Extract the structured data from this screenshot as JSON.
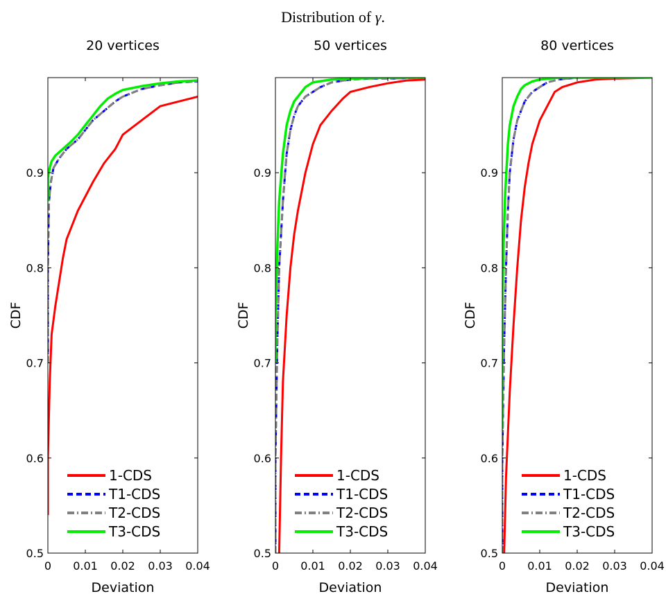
{
  "figure": {
    "title_prefix": "Distribution of ",
    "title_symbol": "γ",
    "title_suffix": "."
  },
  "colors": {
    "1-CDS": "#ff0000",
    "T1-CDS": "#0000ff",
    "T2-CDS": "#808080",
    "T3-CDS": "#00ee00"
  },
  "chart_data": [
    {
      "type": "line",
      "title": "20 vertices",
      "xlabel": "Deviation",
      "ylabel": "CDF",
      "xlim": [
        0,
        0.04
      ],
      "ylim": [
        0.5,
        1.0
      ],
      "xticks": [
        "0",
        "0.01",
        "0.02",
        "0.03",
        "0.04"
      ],
      "yticks": [
        "0.5",
        "0.6",
        "0.7",
        "0.8",
        "0.9"
      ],
      "legend_position": "bottom",
      "series": [
        {
          "name": "1-CDS",
          "x": [
            0,
            0,
            0.0005,
            0.001,
            0.002,
            0.003,
            0.004,
            0.005,
            0.0065,
            0.008,
            0.01,
            0.012,
            0.015,
            0.018,
            0.02,
            0.025,
            0.03,
            0.035,
            0.04
          ],
          "y": [
            0.54,
            0.6,
            0.68,
            0.73,
            0.76,
            0.785,
            0.81,
            0.83,
            0.845,
            0.86,
            0.875,
            0.89,
            0.91,
            0.925,
            0.94,
            0.955,
            0.97,
            0.975,
            0.98
          ]
        },
        {
          "name": "T1-CDS",
          "x": [
            0,
            0,
            0.0003,
            0.0008,
            0.0015,
            0.003,
            0.005,
            0.008,
            0.01,
            0.012,
            0.015,
            0.018,
            0.02,
            0.025,
            0.03,
            0.035,
            0.04
          ],
          "y": [
            0.7,
            0.8,
            0.87,
            0.89,
            0.905,
            0.915,
            0.925,
            0.935,
            0.945,
            0.955,
            0.965,
            0.975,
            0.98,
            0.988,
            0.992,
            0.995,
            0.996
          ]
        },
        {
          "name": "T2-CDS",
          "x": [
            0,
            0,
            0.0003,
            0.0008,
            0.0015,
            0.003,
            0.005,
            0.008,
            0.01,
            0.012,
            0.015,
            0.018,
            0.02,
            0.025,
            0.03,
            0.035,
            0.04
          ],
          "y": [
            0.7,
            0.8,
            0.87,
            0.89,
            0.905,
            0.915,
            0.925,
            0.935,
            0.945,
            0.955,
            0.965,
            0.975,
            0.98,
            0.988,
            0.992,
            0.995,
            0.996
          ]
        },
        {
          "name": "T3-CDS",
          "x": [
            0,
            0,
            0.0005,
            0.001,
            0.002,
            0.004,
            0.006,
            0.008,
            0.01,
            0.012,
            0.014,
            0.016,
            0.018,
            0.02,
            0.025,
            0.03,
            0.035,
            0.04
          ],
          "y": [
            0.87,
            0.895,
            0.905,
            0.912,
            0.918,
            0.925,
            0.932,
            0.94,
            0.95,
            0.96,
            0.97,
            0.978,
            0.983,
            0.987,
            0.991,
            0.994,
            0.996,
            0.997
          ]
        }
      ]
    },
    {
      "type": "line",
      "title": "50 vertices",
      "xlabel": "Deviation",
      "ylabel": "CDF",
      "xlim": [
        0,
        0.04
      ],
      "ylim": [
        0.5,
        1.0
      ],
      "xticks": [
        "0",
        "0.01",
        "0.02",
        "0.03",
        "0.04"
      ],
      "yticks": [
        "0.5",
        "0.6",
        "0.7",
        "0.8",
        "0.9"
      ],
      "legend_position": "bottom",
      "series": [
        {
          "name": "1-CDS",
          "x": [
            0.001,
            0.0015,
            0.002,
            0.003,
            0.004,
            0.005,
            0.006,
            0.008,
            0.01,
            0.012,
            0.015,
            0.018,
            0.02,
            0.025,
            0.03,
            0.035,
            0.04
          ],
          "y": [
            0.5,
            0.6,
            0.68,
            0.75,
            0.8,
            0.835,
            0.86,
            0.9,
            0.93,
            0.95,
            0.965,
            0.978,
            0.985,
            0.99,
            0.994,
            0.997,
            0.998
          ]
        },
        {
          "name": "T1-CDS",
          "x": [
            0,
            0,
            0.0005,
            0.001,
            0.002,
            0.003,
            0.004,
            0.005,
            0.006,
            0.008,
            0.01,
            0.012,
            0.015,
            0.02,
            0.025,
            0.03,
            0.04
          ],
          "y": [
            0.5,
            0.6,
            0.72,
            0.8,
            0.87,
            0.92,
            0.945,
            0.96,
            0.97,
            0.98,
            0.985,
            0.99,
            0.995,
            0.998,
            0.999,
            0.999,
            1.0
          ]
        },
        {
          "name": "T2-CDS",
          "x": [
            0,
            0,
            0.0005,
            0.001,
            0.002,
            0.003,
            0.004,
            0.005,
            0.006,
            0.008,
            0.01,
            0.012,
            0.015,
            0.02,
            0.025,
            0.03,
            0.04
          ],
          "y": [
            0.5,
            0.6,
            0.72,
            0.8,
            0.87,
            0.92,
            0.945,
            0.96,
            0.97,
            0.98,
            0.985,
            0.99,
            0.995,
            0.998,
            0.999,
            0.999,
            1.0
          ]
        },
        {
          "name": "T3-CDS",
          "x": [
            0,
            0,
            0.0005,
            0.001,
            0.002,
            0.003,
            0.004,
            0.005,
            0.007,
            0.008,
            0.01,
            0.015,
            0.02,
            0.03,
            0.04
          ],
          "y": [
            0.7,
            0.75,
            0.82,
            0.87,
            0.92,
            0.95,
            0.965,
            0.975,
            0.985,
            0.99,
            0.995,
            0.998,
            0.999,
            1.0,
            1.0
          ]
        }
      ]
    },
    {
      "type": "line",
      "title": "80 vertices",
      "xlabel": "Deviation",
      "ylabel": "CDF",
      "xlim": [
        0,
        0.04
      ],
      "ylim": [
        0.5,
        1.0
      ],
      "xticks": [
        "0",
        "0.01",
        "0.02",
        "0.03",
        "0.04"
      ],
      "yticks": [
        "0.5",
        "0.6",
        "0.7",
        "0.8",
        "0.9"
      ],
      "legend_position": "bottom",
      "series": [
        {
          "name": "1-CDS",
          "x": [
            0.0005,
            0.001,
            0.002,
            0.003,
            0.004,
            0.005,
            0.006,
            0.007,
            0.008,
            0.01,
            0.012,
            0.014,
            0.016,
            0.02,
            0.025,
            0.03,
            0.04
          ],
          "y": [
            0.5,
            0.58,
            0.67,
            0.74,
            0.8,
            0.85,
            0.885,
            0.91,
            0.93,
            0.955,
            0.97,
            0.985,
            0.99,
            0.995,
            0.998,
            0.999,
            1.0
          ]
        },
        {
          "name": "T1-CDS",
          "x": [
            0,
            0,
            0.0005,
            0.001,
            0.0015,
            0.002,
            0.003,
            0.004,
            0.005,
            0.006,
            0.008,
            0.01,
            0.012,
            0.015,
            0.02,
            0.03,
            0.04
          ],
          "y": [
            0.5,
            0.6,
            0.72,
            0.8,
            0.86,
            0.9,
            0.935,
            0.955,
            0.965,
            0.975,
            0.985,
            0.99,
            0.995,
            0.998,
            1.0,
            1.0,
            1.0
          ]
        },
        {
          "name": "T2-CDS",
          "x": [
            0,
            0,
            0.0005,
            0.001,
            0.0015,
            0.002,
            0.003,
            0.004,
            0.005,
            0.006,
            0.008,
            0.01,
            0.012,
            0.015,
            0.02,
            0.03,
            0.04
          ],
          "y": [
            0.5,
            0.6,
            0.72,
            0.8,
            0.86,
            0.9,
            0.935,
            0.955,
            0.965,
            0.975,
            0.985,
            0.99,
            0.995,
            0.998,
            1.0,
            1.0,
            1.0
          ]
        },
        {
          "name": "T3-CDS",
          "x": [
            0,
            0,
            0.0003,
            0.0008,
            0.0015,
            0.002,
            0.003,
            0.004,
            0.005,
            0.006,
            0.008,
            0.01,
            0.015,
            0.02,
            0.03,
            0.04
          ],
          "y": [
            0.63,
            0.75,
            0.82,
            0.88,
            0.93,
            0.95,
            0.97,
            0.98,
            0.988,
            0.992,
            0.996,
            0.998,
            1.0,
            1.0,
            1.0,
            1.0
          ]
        }
      ]
    }
  ]
}
